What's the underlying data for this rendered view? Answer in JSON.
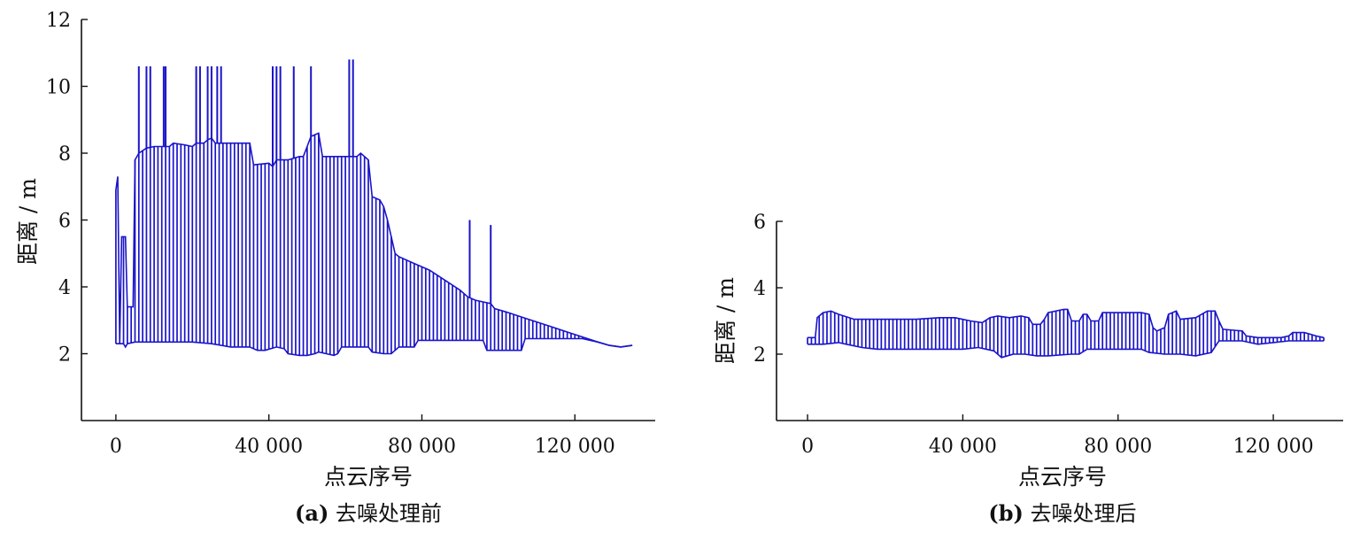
{
  "chart_data": [
    {
      "type": "bar",
      "caption_label": "(a)",
      "caption_text": "去噪处理前",
      "xlabel": "点云序号",
      "ylabel": "距离 / m",
      "xlim": [
        -9000,
        141000
      ],
      "ylim": [
        0,
        12
      ],
      "xticks": [
        0,
        40000,
        80000,
        120000
      ],
      "xtick_labels": [
        "0",
        "40 000",
        "80 000",
        "120 000"
      ],
      "yticks": [
        2,
        4,
        6,
        8,
        10,
        12
      ],
      "ytick_labels": [
        "2",
        "4",
        "6",
        "8",
        "10",
        "12"
      ],
      "color": "#1a14c8",
      "upper": [
        [
          0,
          6.9
        ],
        [
          500,
          7.3
        ],
        [
          1000,
          2.3
        ],
        [
          1500,
          5.5
        ],
        [
          2500,
          5.5
        ],
        [
          3000,
          3.4
        ],
        [
          4500,
          3.4
        ],
        [
          5000,
          7.8
        ],
        [
          6000,
          8.0
        ],
        [
          8000,
          8.15
        ],
        [
          10000,
          8.2
        ],
        [
          14000,
          8.2
        ],
        [
          15000,
          8.3
        ],
        [
          18000,
          8.25
        ],
        [
          20000,
          8.2
        ],
        [
          21000,
          8.3
        ],
        [
          23000,
          8.3
        ],
        [
          24000,
          8.4
        ],
        [
          25000,
          8.45
        ],
        [
          26000,
          8.3
        ],
        [
          35000,
          8.3
        ],
        [
          36000,
          7.65
        ],
        [
          40000,
          7.7
        ],
        [
          41000,
          7.6
        ],
        [
          42000,
          7.8
        ],
        [
          44000,
          7.8
        ],
        [
          45000,
          7.8
        ],
        [
          48000,
          7.9
        ],
        [
          49000,
          7.9
        ],
        [
          50000,
          8.2
        ],
        [
          51000,
          8.5
        ],
        [
          53000,
          8.6
        ],
        [
          54000,
          7.9
        ],
        [
          62000,
          7.9
        ],
        [
          63000,
          7.9
        ],
        [
          64000,
          8.0
        ],
        [
          65000,
          7.9
        ],
        [
          66000,
          7.8
        ],
        [
          67000,
          6.7
        ],
        [
          69000,
          6.6
        ],
        [
          70000,
          6.4
        ],
        [
          71000,
          6.0
        ],
        [
          72000,
          5.5
        ],
        [
          73000,
          5.0
        ],
        [
          74000,
          4.9
        ],
        [
          78000,
          4.7
        ],
        [
          82000,
          4.5
        ],
        [
          86000,
          4.2
        ],
        [
          90000,
          3.9
        ],
        [
          92000,
          3.7
        ],
        [
          94000,
          3.6
        ],
        [
          96000,
          3.55
        ],
        [
          98000,
          3.5
        ],
        [
          99000,
          3.35
        ],
        [
          102000,
          3.25
        ],
        [
          106000,
          3.1
        ],
        [
          110000,
          2.95
        ],
        [
          114000,
          2.8
        ],
        [
          118000,
          2.65
        ],
        [
          122000,
          2.5
        ],
        [
          126000,
          2.35
        ],
        [
          129000,
          2.25
        ],
        [
          132000,
          2.2
        ],
        [
          135000,
          2.25
        ]
      ],
      "lower": [
        [
          0,
          2.3
        ],
        [
          2000,
          2.3
        ],
        [
          2500,
          2.2
        ],
        [
          3000,
          2.3
        ],
        [
          5000,
          2.35
        ],
        [
          10000,
          2.35
        ],
        [
          20000,
          2.35
        ],
        [
          25000,
          2.3
        ],
        [
          30000,
          2.2
        ],
        [
          35000,
          2.2
        ],
        [
          37000,
          2.1
        ],
        [
          39000,
          2.1
        ],
        [
          42000,
          2.2
        ],
        [
          44000,
          2.15
        ],
        [
          45000,
          2.0
        ],
        [
          48000,
          1.95
        ],
        [
          50000,
          1.95
        ],
        [
          52000,
          2.0
        ],
        [
          53000,
          2.05
        ],
        [
          55000,
          2.0
        ],
        [
          57000,
          1.95
        ],
        [
          58000,
          2.0
        ],
        [
          59000,
          2.2
        ],
        [
          66000,
          2.2
        ],
        [
          67000,
          2.05
        ],
        [
          70000,
          2.0
        ],
        [
          72000,
          2.0
        ],
        [
          73000,
          2.1
        ],
        [
          74000,
          2.2
        ],
        [
          78000,
          2.2
        ],
        [
          79000,
          2.4
        ],
        [
          96000,
          2.4
        ],
        [
          97000,
          2.1
        ],
        [
          106000,
          2.1
        ],
        [
          107000,
          2.45
        ],
        [
          122000,
          2.45
        ],
        [
          126000,
          2.35
        ],
        [
          129000,
          2.25
        ],
        [
          132000,
          2.2
        ],
        [
          135000,
          2.25
        ]
      ],
      "spikes": [
        [
          6000,
          10.6
        ],
        [
          8000,
          10.6
        ],
        [
          9000,
          10.6
        ],
        [
          12500,
          10.6
        ],
        [
          13000,
          10.6
        ],
        [
          21000,
          10.6
        ],
        [
          22000,
          10.6
        ],
        [
          24000,
          10.6
        ],
        [
          25000,
          10.6
        ],
        [
          26500,
          10.6
        ],
        [
          27500,
          10.6
        ],
        [
          41000,
          10.6
        ],
        [
          42000,
          10.6
        ],
        [
          43000,
          10.6
        ],
        [
          46500,
          10.6
        ],
        [
          51000,
          10.6
        ],
        [
          61000,
          10.8
        ],
        [
          62000,
          10.8
        ],
        [
          92500,
          6.0
        ],
        [
          98000,
          5.85
        ]
      ]
    },
    {
      "type": "bar",
      "caption_label": "(b)",
      "caption_text": "去噪处理后",
      "xlabel": "点云序号",
      "ylabel": "距离 / m",
      "xlim": [
        -8000,
        138000
      ],
      "ylim": [
        0,
        6
      ],
      "xticks": [
        0,
        40000,
        80000,
        120000
      ],
      "xtick_labels": [
        "0",
        "40 000",
        "80 000",
        "120 000"
      ],
      "yticks": [
        2,
        4,
        6
      ],
      "ytick_labels": [
        "2",
        "4",
        "6"
      ],
      "color": "#1a14c8",
      "upper": [
        [
          0,
          2.5
        ],
        [
          2000,
          2.5
        ],
        [
          2500,
          3.1
        ],
        [
          4000,
          3.25
        ],
        [
          6000,
          3.3
        ],
        [
          8000,
          3.2
        ],
        [
          12000,
          3.05
        ],
        [
          20000,
          3.05
        ],
        [
          28000,
          3.05
        ],
        [
          34000,
          3.1
        ],
        [
          38000,
          3.1
        ],
        [
          42000,
          3.0
        ],
        [
          45000,
          2.95
        ],
        [
          47000,
          3.1
        ],
        [
          49000,
          3.15
        ],
        [
          52000,
          3.1
        ],
        [
          55000,
          3.15
        ],
        [
          57000,
          3.1
        ],
        [
          58000,
          2.9
        ],
        [
          60000,
          2.9
        ],
        [
          61000,
          3.05
        ],
        [
          62000,
          3.25
        ],
        [
          66000,
          3.35
        ],
        [
          67000,
          3.35
        ],
        [
          68000,
          3.0
        ],
        [
          70000,
          3.0
        ],
        [
          71000,
          3.2
        ],
        [
          72000,
          3.2
        ],
        [
          73000,
          3.0
        ],
        [
          75000,
          3.0
        ],
        [
          76000,
          3.25
        ],
        [
          86000,
          3.25
        ],
        [
          88000,
          3.2
        ],
        [
          89000,
          2.8
        ],
        [
          90000,
          2.7
        ],
        [
          92000,
          2.8
        ],
        [
          93000,
          3.2
        ],
        [
          95000,
          3.3
        ],
        [
          96000,
          3.05
        ],
        [
          100000,
          3.1
        ],
        [
          103000,
          3.3
        ],
        [
          105000,
          3.3
        ],
        [
          106000,
          3.0
        ],
        [
          107000,
          2.75
        ],
        [
          112000,
          2.7
        ],
        [
          113000,
          2.55
        ],
        [
          116000,
          2.5
        ],
        [
          122000,
          2.5
        ],
        [
          124000,
          2.55
        ],
        [
          125000,
          2.65
        ],
        [
          128000,
          2.65
        ],
        [
          131000,
          2.55
        ],
        [
          133000,
          2.5
        ]
      ],
      "lower": [
        [
          0,
          2.3
        ],
        [
          2000,
          2.3
        ],
        [
          4000,
          2.3
        ],
        [
          8000,
          2.35
        ],
        [
          10000,
          2.3
        ],
        [
          14000,
          2.2
        ],
        [
          18000,
          2.15
        ],
        [
          30000,
          2.15
        ],
        [
          40000,
          2.15
        ],
        [
          44000,
          2.2
        ],
        [
          48000,
          2.1
        ],
        [
          50000,
          1.9
        ],
        [
          53000,
          2.0
        ],
        [
          56000,
          2.0
        ],
        [
          59000,
          1.95
        ],
        [
          62000,
          1.95
        ],
        [
          68000,
          2.0
        ],
        [
          70000,
          2.0
        ],
        [
          72000,
          2.15
        ],
        [
          86000,
          2.15
        ],
        [
          88000,
          2.05
        ],
        [
          92000,
          2.0
        ],
        [
          96000,
          2.0
        ],
        [
          100000,
          1.95
        ],
        [
          104000,
          2.05
        ],
        [
          106000,
          2.4
        ],
        [
          112000,
          2.4
        ],
        [
          116000,
          2.3
        ],
        [
          120000,
          2.35
        ],
        [
          124000,
          2.4
        ],
        [
          128000,
          2.4
        ],
        [
          130000,
          2.4
        ],
        [
          133000,
          2.4
        ]
      ]
    }
  ]
}
